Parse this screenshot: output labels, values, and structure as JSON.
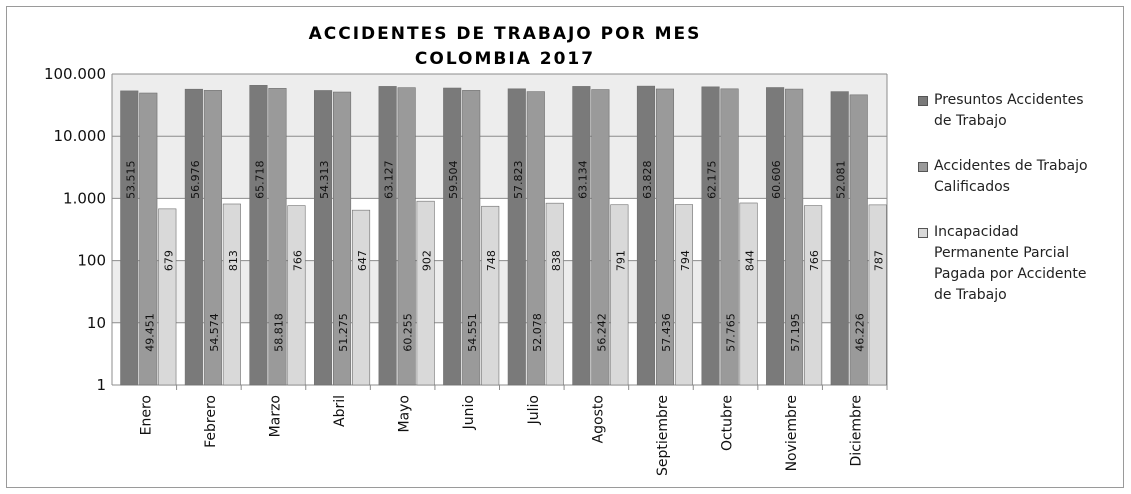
{
  "chart_data": {
    "type": "bar",
    "title": [
      "ACCIDENTES DE TRABAJO  POR MES",
      "COLOMBIA 2017"
    ],
    "categories": [
      "Enero",
      "Febrero",
      "Marzo",
      "Abril",
      "Mayo",
      "Junio",
      "Julio",
      "Agosto",
      "Septiembre",
      "Octubre",
      "Noviembre",
      "Diciembre"
    ],
    "series": [
      {
        "name": "Presuntos Accidentes de Trabajo",
        "values": [
          53515,
          56976,
          65718,
          54313,
          63127,
          59504,
          57823,
          63134,
          63828,
          62175,
          60606,
          52081
        ],
        "labels": [
          "53.515",
          "56.976",
          "65.718",
          "54.313",
          "63.127",
          "59.504",
          "57.823",
          "63.134",
          "63.828",
          "62.175",
          "60.606",
          "52.081"
        ],
        "color": "#7a7a7a"
      },
      {
        "name": "Accidentes de Trabajo Calificados",
        "values": [
          49451,
          54574,
          58818,
          51275,
          60255,
          54551,
          52078,
          56242,
          57436,
          57765,
          57195,
          46226
        ],
        "labels": [
          "49.451",
          "54.574",
          "58.818",
          "51.275",
          "60.255",
          "54.551",
          "52.078",
          "56.242",
          "57.436",
          "57.765",
          "57.195",
          "46.226"
        ],
        "color": "#9a9a9a"
      },
      {
        "name": "Incapacidad Permanente Parcial Pagada por Accidente de Trabajo",
        "values": [
          679,
          813,
          766,
          647,
          902,
          748,
          838,
          791,
          794,
          844,
          766,
          787
        ],
        "labels": [
          "679",
          "813",
          "766",
          "647",
          "902",
          "748",
          "838",
          "791",
          "794",
          "844",
          "766",
          "787"
        ],
        "color": "#d9d9d9"
      }
    ],
    "yscale": "log",
    "ylim": [
      1,
      100000
    ],
    "yticks": [
      1,
      10,
      100,
      1000,
      10000,
      100000
    ],
    "ytick_labels": [
      "1",
      "10",
      "100",
      "1.000",
      "10.000",
      "100.000"
    ],
    "grid": true,
    "legend_position": "right",
    "legend_labels": [
      [
        "Presuntos Accidentes",
        "de Trabajo"
      ],
      [
        "Accidentes de Trabajo",
        "Calificados"
      ],
      [
        "Incapacidad",
        "Permanente Parcial",
        "Pagada por Accidente",
        "de Trabajo"
      ]
    ]
  }
}
